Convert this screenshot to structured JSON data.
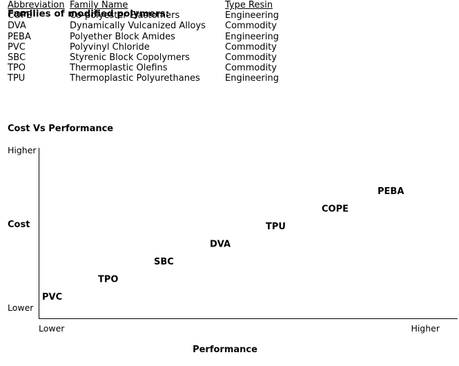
{
  "table": {
    "title": "Families of modified polymers:",
    "headers": {
      "abbreviation": "Abbreviation",
      "family": "Family Name",
      "type": "Type Resin"
    },
    "rows": [
      {
        "abbr": "COPE",
        "family": "Co-polyester Elastomers",
        "type": "Engineering"
      },
      {
        "abbr": "DVA",
        "family": "Dynamically Vulcanized Alloys",
        "type": "Commodity"
      },
      {
        "abbr": "PEBA",
        "family": "Polyether Block Amides",
        "type": "Engineering"
      },
      {
        "abbr": "PVC",
        "family": "Polyvinyl Chloride",
        "type": "Commodity"
      },
      {
        "abbr": "SBC",
        "family": "Styrenic Block Copolymers",
        "type": "Commodity"
      },
      {
        "abbr": "TPO",
        "family": "Thermoplastic Olefins",
        "type": "Commodity"
      },
      {
        "abbr": "TPU",
        "family": "Thermoplastic Polyurethanes",
        "type": "Engineering"
      }
    ]
  },
  "chart_data": {
    "type": "scatter",
    "title": "Cost Vs Performance",
    "xlabel": "Performance",
    "ylabel": "Cost",
    "x_tick_labels": [
      "Lower",
      "Higher"
    ],
    "y_tick_labels": [
      "Lower",
      "Higher"
    ],
    "xlim": [
      0,
      1
    ],
    "ylim": [
      0,
      1
    ],
    "grid": false,
    "series": [
      {
        "points": [
          {
            "label": "PVC",
            "x": 0.0,
            "y": 0.0
          },
          {
            "label": "TPO",
            "x": 0.15,
            "y": 0.14
          },
          {
            "label": "SBC",
            "x": 0.3,
            "y": 0.28
          },
          {
            "label": "DVA",
            "x": 0.45,
            "y": 0.42
          },
          {
            "label": "TPU",
            "x": 0.6,
            "y": 0.56
          },
          {
            "label": "COPE",
            "x": 0.75,
            "y": 0.7
          },
          {
            "label": "PEBA",
            "x": 0.9,
            "y": 0.84
          }
        ]
      }
    ]
  }
}
